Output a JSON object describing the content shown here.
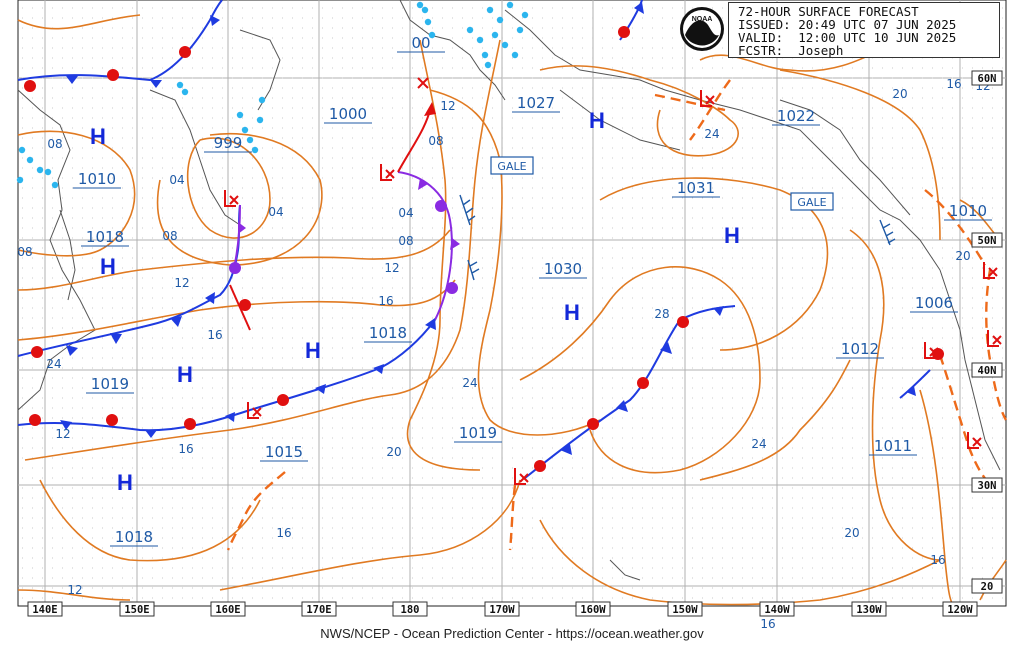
{
  "header": {
    "title": "72-HOUR SURFACE FORECAST",
    "issued": "ISSUED: 20:49 UTC 07 JUN 2025",
    "valid": "VALID:  12:00 UTC 10 JUN 2025",
    "forecaster": "FCSTR:  Joseph"
  },
  "logo": {
    "text": "NOAA"
  },
  "footer": "NWS/NCEP - Ocean Prediction Center - https://ocean.weather.gov",
  "longitude_labels": [
    "140E",
    "150E",
    "160E",
    "170E",
    "180",
    "170W",
    "160W",
    "150W",
    "140W",
    "130W",
    "120W"
  ],
  "latitude_labels": [
    "60N",
    "50N",
    "40N",
    "30N",
    "20"
  ],
  "pressure_centers": [
    {
      "type": "H",
      "value": "1010"
    },
    {
      "type": "H",
      "value": "1018"
    },
    {
      "type": "H",
      "value": "1019"
    },
    {
      "type": "H",
      "value": "1018"
    },
    {
      "type": "H",
      "value": "1018"
    },
    {
      "type": "H",
      "value": "1027"
    },
    {
      "type": "H",
      "value": "1030"
    },
    {
      "type": "H",
      "value": "1031"
    },
    {
      "type": "L",
      "value": "999"
    },
    {
      "type": "L",
      "value": "1000"
    },
    {
      "type": "L",
      "value": "1022"
    },
    {
      "type": "L",
      "value": "1006"
    },
    {
      "type": "L",
      "value": "1019"
    },
    {
      "type": "L",
      "value": "1015"
    }
  ],
  "value_labels": [
    "1010",
    "1018",
    "1019",
    "1018",
    "999",
    "1000",
    "1018",
    "1015",
    "1027",
    "1030",
    "1019",
    "1031",
    "1022",
    "1012",
    "1011",
    "1010",
    "1006",
    "00"
  ],
  "isobar_labels": [
    "08",
    "08",
    "04",
    "08",
    "04",
    "12",
    "16",
    "12",
    "08",
    "04",
    "08",
    "12",
    "16",
    "16",
    "12",
    "24",
    "20",
    "28",
    "24",
    "20",
    "24",
    "16",
    "20",
    "16",
    "12",
    "16",
    "16",
    "12",
    "20",
    "24"
  ],
  "gale_labels": [
    "GALE",
    "GALE"
  ],
  "colors": {
    "isobar": "#e07a22",
    "label": "#1f5aa6",
    "high": "#1328d8",
    "low": "#e01010",
    "cold_front": "#1f3be0",
    "warm_front": "#e01010",
    "occluded": "#8a2be2",
    "ice": "#2bb5ee",
    "coast": "#555555",
    "grid": "#b0b0b0"
  }
}
